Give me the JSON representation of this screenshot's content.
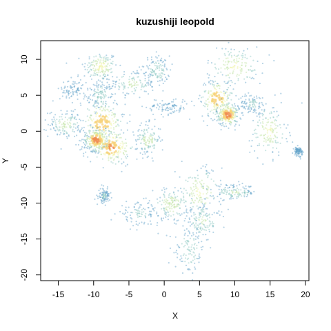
{
  "chart_data": {
    "type": "scatter",
    "title": "kuzushiji leopold",
    "xlabel": "X",
    "ylabel": "Y",
    "xlim": [
      -17.5,
      20.5
    ],
    "ylim": [
      -20.8,
      12.6
    ],
    "xticks": [
      -15,
      -10,
      -5,
      0,
      5,
      10,
      15,
      20
    ],
    "yticks": [
      -20,
      -15,
      -10,
      -5,
      0,
      5,
      10
    ],
    "grid": false,
    "legend": "none",
    "colormap": [
      "#5e9fc8",
      "#8cc7c0",
      "#bfe3a0",
      "#eef29a",
      "#f7d27a",
      "#f08e52",
      "#d63c2e"
    ],
    "clusters": [
      {
        "x": -9,
        "y": 9,
        "sx": 1.2,
        "sy": 1.0,
        "density": 0.55
      },
      {
        "x": -4.5,
        "y": 6.6,
        "sx": 1.6,
        "sy": 1.0,
        "density": 0.35
      },
      {
        "x": -1,
        "y": 8.5,
        "sx": 0.9,
        "sy": 1.0,
        "density": 0.3
      },
      {
        "x": -9,
        "y": 5,
        "sx": 0.8,
        "sy": 1.0,
        "density": 0.3
      },
      {
        "x": -14,
        "y": 1,
        "sx": 1.2,
        "sy": 0.9,
        "density": 0.4
      },
      {
        "x": -8.8,
        "y": 1.2,
        "sx": 1.6,
        "sy": 1.6,
        "density": 0.75
      },
      {
        "x": -7.5,
        "y": -2.2,
        "sx": 1.6,
        "sy": 1.3,
        "density": 0.8
      },
      {
        "x": -9.6,
        "y": -1.2,
        "sx": 0.9,
        "sy": 0.8,
        "density": 0.9
      },
      {
        "x": -2.3,
        "y": -1.2,
        "sx": 0.9,
        "sy": 1.1,
        "density": 0.4
      },
      {
        "x": 0.5,
        "y": 3.4,
        "sx": 1.5,
        "sy": 0.6,
        "density": 0.15
      },
      {
        "x": -12.8,
        "y": 5.7,
        "sx": 1.0,
        "sy": 0.8,
        "density": 0.15
      },
      {
        "x": 7.5,
        "y": 4.5,
        "sx": 1.2,
        "sy": 1.4,
        "density": 0.75
      },
      {
        "x": 9,
        "y": 2.3,
        "sx": 0.8,
        "sy": 0.8,
        "density": 0.9
      },
      {
        "x": 10,
        "y": 9,
        "sx": 2.0,
        "sy": 1.4,
        "density": 0.5
      },
      {
        "x": 12.5,
        "y": 3.8,
        "sx": 0.9,
        "sy": 0.7,
        "density": 0.2
      },
      {
        "x": 14.8,
        "y": 0,
        "sx": 1.3,
        "sy": 1.8,
        "density": 0.5
      },
      {
        "x": 5,
        "y": -8.5,
        "sx": 1.6,
        "sy": 1.8,
        "density": 0.5
      },
      {
        "x": 1,
        "y": -10.2,
        "sx": 1.3,
        "sy": 1.1,
        "density": 0.45
      },
      {
        "x": 5.5,
        "y": -12.5,
        "sx": 1.2,
        "sy": 1.2,
        "density": 0.35
      },
      {
        "x": -3.5,
        "y": -11.5,
        "sx": 1.6,
        "sy": 0.8,
        "density": 0.2
      },
      {
        "x": 10,
        "y": -8.5,
        "sx": 1.5,
        "sy": 0.5,
        "density": 0.35
      },
      {
        "x": 3.6,
        "y": -16.5,
        "sx": 1.1,
        "sy": 1.6,
        "density": 0.3
      },
      {
        "x": -8.5,
        "y": -9,
        "sx": 0.4,
        "sy": 0.5,
        "density": 0.2
      },
      {
        "x": 19,
        "y": -2.8,
        "sx": 0.3,
        "sy": 0.3,
        "density": 0.15
      }
    ]
  }
}
